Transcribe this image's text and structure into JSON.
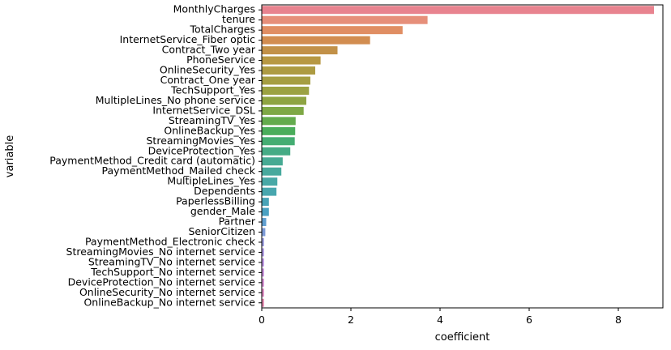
{
  "chart_data": {
    "type": "bar",
    "orientation": "horizontal",
    "xlabel": "coefficient",
    "ylabel": "variable",
    "xlim": [
      0,
      9
    ],
    "xticks": [
      0,
      2,
      4,
      6,
      8
    ],
    "grid": false,
    "categories": [
      "MonthlyCharges",
      "tenure",
      "TotalCharges",
      "InternetService_Fiber optic",
      "Contract_Two year",
      "PhoneService",
      "OnlineSecurity_Yes",
      "Contract_One year",
      "TechSupport_Yes",
      "MultipleLines_No phone service",
      "InternetService_DSL",
      "StreamingTV_Yes",
      "OnlineBackup_Yes",
      "StreamingMovies_Yes",
      "DeviceProtection_Yes",
      "PaymentMethod_Credit card (automatic)",
      "PaymentMethod_Mailed check",
      "MultipleLines_Yes",
      "Dependents",
      "PaperlessBilling",
      "gender_Male",
      "Partner",
      "SeniorCitizen",
      "PaymentMethod_Electronic check",
      "StreamingMovies_No internet service",
      "StreamingTV_No internet service",
      "TechSupport_No internet service",
      "DeviceProtection_No internet service",
      "OnlineSecurity_No internet service",
      "OnlineBackup_No internet service"
    ],
    "values": [
      8.8,
      3.72,
      3.16,
      2.43,
      1.7,
      1.32,
      1.2,
      1.09,
      1.06,
      1.0,
      0.94,
      0.76,
      0.75,
      0.74,
      0.64,
      0.47,
      0.44,
      0.35,
      0.33,
      0.16,
      0.16,
      0.1,
      0.08,
      0.05,
      0.05,
      0.05,
      0.05,
      0.05,
      0.05,
      0.05
    ],
    "colors": [
      "#e8838f",
      "#e68f7a",
      "#e08e63",
      "#d28d50",
      "#c29148",
      "#b79843",
      "#ad9b42",
      "#a59e42",
      "#9ba242",
      "#8ea442",
      "#7ea845",
      "#63ab4d",
      "#4aad5b",
      "#44ad72",
      "#45ab85",
      "#46aa93",
      "#47a99d",
      "#48a8a6",
      "#48a6ae",
      "#49a3b7",
      "#4ba1c2",
      "#609fd0",
      "#7d9bd7",
      "#9697dc",
      "#a993e0",
      "#b78ee0",
      "#c48ad9",
      "#cf86cd",
      "#da83bd",
      "#e283ab"
    ]
  }
}
